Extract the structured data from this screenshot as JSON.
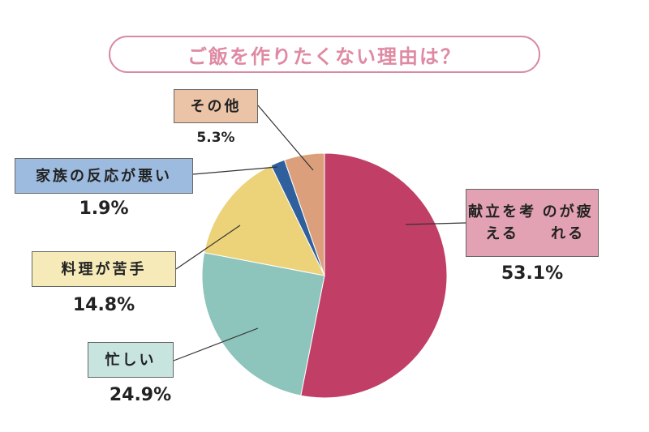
{
  "chart_data": {
    "type": "pie",
    "title": "ご飯を作りたくない理由は？",
    "slices": [
      {
        "label": "献立を考えるのが疲れる",
        "label_lines": [
          "献立を考える",
          "のが疲れる"
        ],
        "value": 53.1,
        "value_label": "53.1%",
        "color": "#c13f66",
        "label_bg": "#e3a2b3"
      },
      {
        "label": "忙しい",
        "label_lines": [
          "忙しい"
        ],
        "value": 24.9,
        "value_label": "24.9%",
        "color": "#8dc4bc",
        "label_bg": "#c7e4df"
      },
      {
        "label": "料理が苦手",
        "label_lines": [
          "料理が苦手"
        ],
        "value": 14.8,
        "value_label": "14.8%",
        "color": "#ecd278",
        "label_bg": "#f6ebb8"
      },
      {
        "label": "家族の反応が悪い",
        "label_lines": [
          "家族の反応が悪い"
        ],
        "value": 1.9,
        "value_label": "1.9%",
        "color": "#2f5f9c",
        "label_bg": "#9dbbdf"
      },
      {
        "label": "その他",
        "label_lines": [
          "その他"
        ],
        "value": 5.3,
        "value_label": "5.3%",
        "color": "#dba07b",
        "label_bg": "#ebc4a7"
      }
    ]
  }
}
